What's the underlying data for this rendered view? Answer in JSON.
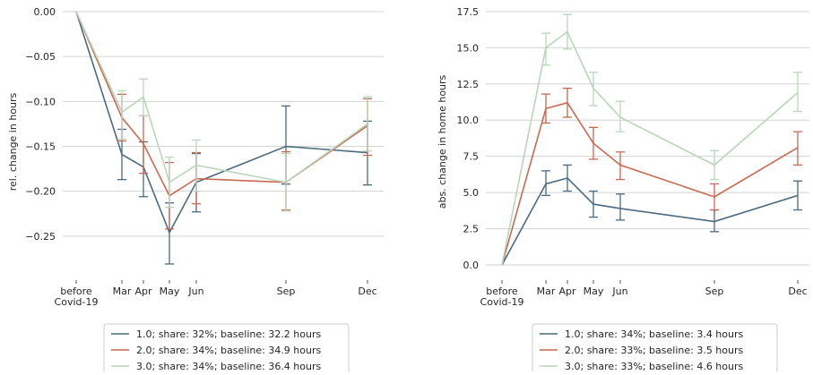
{
  "chart_data": [
    {
      "type": "line",
      "ylabel": "rel. change in hours",
      "xlabel": "",
      "categories": [
        "before\nCovid-19",
        "Mar",
        "Apr",
        "May",
        "Jun",
        "Sep",
        "Dec"
      ],
      "ylim": [
        -0.295,
        0.005
      ],
      "yticks": [
        0.0,
        -0.05,
        -0.1,
        -0.15,
        -0.2,
        -0.25
      ],
      "ytick_labels": [
        "0.00",
        "−0.05",
        "−0.10",
        "−0.15",
        "−0.20",
        "−0.25"
      ],
      "grid": true,
      "legend_position": "below",
      "series": [
        {
          "name": "1.0; share: 32%; baseline: 32.2 hours",
          "color": "#4a6b80",
          "values": [
            0.0,
            -0.159,
            -0.173,
            -0.246,
            -0.19,
            -0.15,
            -0.157
          ],
          "err_low": [
            null,
            -0.187,
            -0.206,
            -0.281,
            -0.223,
            -0.192,
            -0.193
          ],
          "err_high": [
            null,
            -0.131,
            -0.145,
            -0.213,
            -0.158,
            -0.105,
            -0.122
          ]
        },
        {
          "name": "2.0; share: 34%; baseline: 34.9 hours",
          "color": "#c9694f",
          "values": [
            0.0,
            -0.118,
            -0.147,
            -0.205,
            -0.186,
            -0.19,
            -0.127
          ],
          "err_low": [
            null,
            -0.144,
            -0.18,
            -0.242,
            -0.214,
            -0.221,
            -0.16
          ],
          "err_high": [
            null,
            -0.092,
            -0.116,
            -0.168,
            -0.157,
            -0.156,
            -0.097
          ]
        },
        {
          "name": "3.0; share: 34%; baseline: 36.4 hours",
          "color": "#b9d6b9",
          "values": [
            0.0,
            -0.112,
            -0.095,
            -0.19,
            -0.171,
            -0.19,
            -0.125
          ],
          "err_low": [
            null,
            -0.142,
            -0.116,
            -0.218,
            -0.2,
            -0.222,
            -0.155
          ],
          "err_high": [
            null,
            -0.088,
            -0.075,
            -0.162,
            -0.143,
            -0.158,
            -0.095
          ]
        }
      ]
    },
    {
      "type": "line",
      "ylabel": "abs. change in home hours",
      "xlabel": "",
      "categories": [
        "before\nCovid-19",
        "Mar",
        "Apr",
        "May",
        "Jun",
        "Sep",
        "Dec"
      ],
      "ylim": [
        -0.8,
        17.8
      ],
      "yticks": [
        0.0,
        2.5,
        5.0,
        7.5,
        10.0,
        12.5,
        15.0,
        17.5
      ],
      "ytick_labels": [
        "0.0",
        "2.5",
        "5.0",
        "7.5",
        "10.0",
        "12.5",
        "15.0",
        "17.5"
      ],
      "grid": true,
      "legend_position": "below",
      "series": [
        {
          "name": "1.0; share: 34%; baseline: 3.4 hours",
          "color": "#4a6b80",
          "values": [
            0.0,
            5.6,
            6.0,
            4.2,
            3.9,
            3.0,
            4.8
          ],
          "err_low": [
            null,
            4.8,
            5.1,
            3.3,
            3.1,
            2.3,
            3.8
          ],
          "err_high": [
            null,
            6.5,
            6.9,
            5.1,
            4.9,
            3.8,
            5.8
          ]
        },
        {
          "name": "2.0; share: 33%; baseline: 3.5 hours",
          "color": "#c9694f",
          "values": [
            0.0,
            10.8,
            11.2,
            8.4,
            6.9,
            4.7,
            8.1
          ],
          "err_low": [
            null,
            9.8,
            10.2,
            7.3,
            5.9,
            3.8,
            6.9
          ],
          "err_high": [
            null,
            11.8,
            12.2,
            9.5,
            7.8,
            5.6,
            9.2
          ]
        },
        {
          "name": "3.0; share: 33%; baseline: 4.6 hours",
          "color": "#b9d6b9",
          "values": [
            0.0,
            15.0,
            16.1,
            12.2,
            10.2,
            6.9,
            11.9
          ],
          "err_low": [
            null,
            13.8,
            14.9,
            11.0,
            9.2,
            5.9,
            10.6
          ],
          "err_high": [
            null,
            16.0,
            17.3,
            13.3,
            11.3,
            7.9,
            13.3
          ]
        }
      ]
    }
  ]
}
